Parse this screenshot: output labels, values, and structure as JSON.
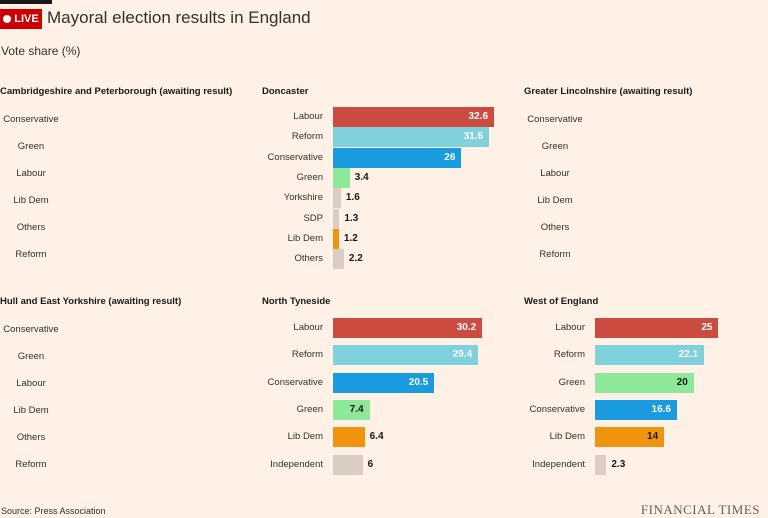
{
  "header": {
    "live_label": "LIVE",
    "title": "Mayoral election results in England",
    "subtitle": "Vote share (%)"
  },
  "footer": {
    "source": "Source: Press Association",
    "brand": "FINANCIAL TIMES"
  },
  "colors": {
    "Labour": "#cc4c42",
    "Reform": "#7fd1dc",
    "Conservative": "#1a9be0",
    "Green": "#8de89a",
    "Yorkshire": "#d9cdc4",
    "SDP": "#d9cdc4",
    "Lib Dem": "#f0930e",
    "Others": "#d9cdc4",
    "Independent": "#d9cdc4"
  },
  "chart_data": [
    {
      "type": "bar",
      "title": "Cambridgeshire and Peterborough (awaiting result)",
      "categories": [
        "Conservative",
        "Green",
        "Labour",
        "Lib Dem",
        "Others",
        "Reform"
      ],
      "values": [
        null,
        null,
        null,
        null,
        null,
        null
      ],
      "xlim": [
        0,
        33
      ]
    },
    {
      "type": "bar",
      "title": "Doncaster",
      "categories": [
        "Labour",
        "Reform",
        "Conservative",
        "Green",
        "Yorkshire",
        "SDP",
        "Lib Dem",
        "Others"
      ],
      "values": [
        32.6,
        31.6,
        26,
        3.4,
        1.6,
        1.3,
        1.2,
        2.2
      ],
      "xlim": [
        0,
        33
      ]
    },
    {
      "type": "bar",
      "title": "Greater Lincolnshire (awaiting result)",
      "categories": [
        "Conservative",
        "Green",
        "Labour",
        "Lib Dem",
        "Others",
        "Reform"
      ],
      "values": [
        null,
        null,
        null,
        null,
        null,
        null
      ],
      "xlim": [
        0,
        33
      ]
    },
    {
      "type": "bar",
      "title": "Hull and East Yorkshire (awaiting result)",
      "categories": [
        "Conservative",
        "Green",
        "Labour",
        "Lib Dem",
        "Others",
        "Reform"
      ],
      "values": [
        null,
        null,
        null,
        null,
        null,
        null
      ],
      "xlim": [
        0,
        33
      ]
    },
    {
      "type": "bar",
      "title": "North Tyneside",
      "categories": [
        "Labour",
        "Reform",
        "Conservative",
        "Green",
        "Lib Dem",
        "Independent"
      ],
      "values": [
        30.2,
        29.4,
        20.5,
        7.4,
        6.4,
        6
      ],
      "xlim": [
        0,
        33
      ]
    },
    {
      "type": "bar",
      "title": "West of England",
      "categories": [
        "Labour",
        "Reform",
        "Green",
        "Conservative",
        "Lib Dem",
        "Independent"
      ],
      "values": [
        25,
        22.1,
        20,
        16.6,
        14,
        2.3
      ],
      "xlim": [
        0,
        33
      ]
    }
  ]
}
